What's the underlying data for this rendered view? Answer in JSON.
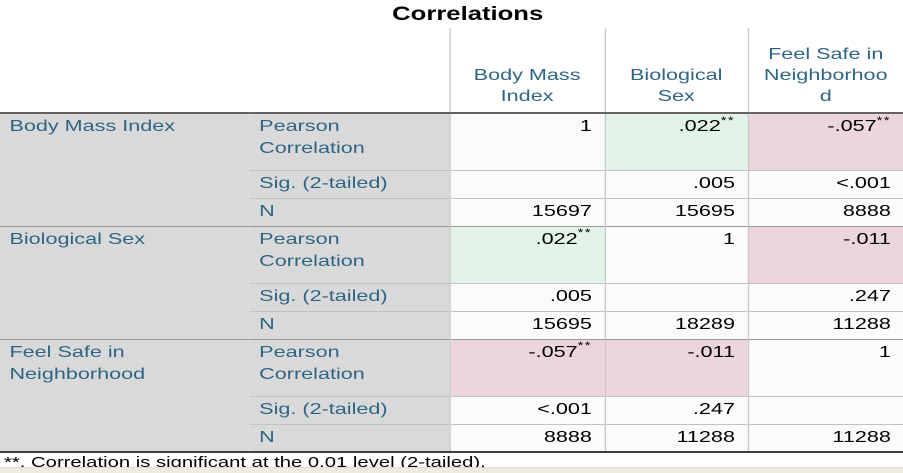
{
  "title": "Correlations",
  "colors": {
    "label_background": "#d9d9d9",
    "label_text": "#2e6584",
    "highlight_positive_green": "#e2f4e8",
    "highlight_negative_pink": "#edd5de",
    "data_cell_background": "#fbfbfb",
    "header_rule": "#636363",
    "group_rule": "#989898",
    "sub_rule": "#c3c3c3"
  },
  "table": {
    "columns": [
      {
        "label": "Body Mass Index",
        "lines": [
          "Body Mass",
          "Index"
        ]
      },
      {
        "label": "Biological Sex",
        "lines": [
          "Biological",
          "Sex"
        ]
      },
      {
        "label": "Feel Safe in Neighborhood",
        "lines": [
          "Feel Safe in",
          "Neighborhoo",
          "d"
        ]
      }
    ],
    "stat_labels": {
      "pearson": [
        "Pearson",
        "Correlation"
      ],
      "sig": "Sig. (2-tailed)",
      "n": "N"
    },
    "rows": [
      {
        "variable": "Body Mass Index",
        "variable_lines": [
          "Body Mass Index"
        ],
        "pearson": [
          {
            "value": "1",
            "mark": "",
            "hl": "none"
          },
          {
            "value": ".022",
            "mark": "**",
            "hl": "green"
          },
          {
            "value": "-.057",
            "mark": "**",
            "hl": "pink"
          }
        ],
        "sig": [
          "",
          ".005",
          "<.001"
        ],
        "n": [
          "15697",
          "15695",
          "8888"
        ]
      },
      {
        "variable": "Biological Sex",
        "variable_lines": [
          "Biological Sex"
        ],
        "pearson": [
          {
            "value": ".022",
            "mark": "**",
            "hl": "green"
          },
          {
            "value": "1",
            "mark": "",
            "hl": "none"
          },
          {
            "value": "-.011",
            "mark": "",
            "hl": "pink"
          }
        ],
        "sig": [
          ".005",
          "",
          ".247"
        ],
        "n": [
          "15695",
          "18289",
          "11288"
        ]
      },
      {
        "variable": "Feel Safe in Neighborhood",
        "variable_lines": [
          "Feel Safe in",
          "Neighborhood"
        ],
        "pearson": [
          {
            "value": "-.057",
            "mark": "**",
            "hl": "pink"
          },
          {
            "value": "-.011",
            "mark": "",
            "hl": "pink"
          },
          {
            "value": "1",
            "mark": "",
            "hl": "none"
          }
        ],
        "sig": [
          "<.001",
          ".247",
          ""
        ],
        "n": [
          "8888",
          "11288",
          "11288"
        ]
      }
    ],
    "footnote": "**. Correlation is significant at the 0.01 level (2-tailed)."
  }
}
